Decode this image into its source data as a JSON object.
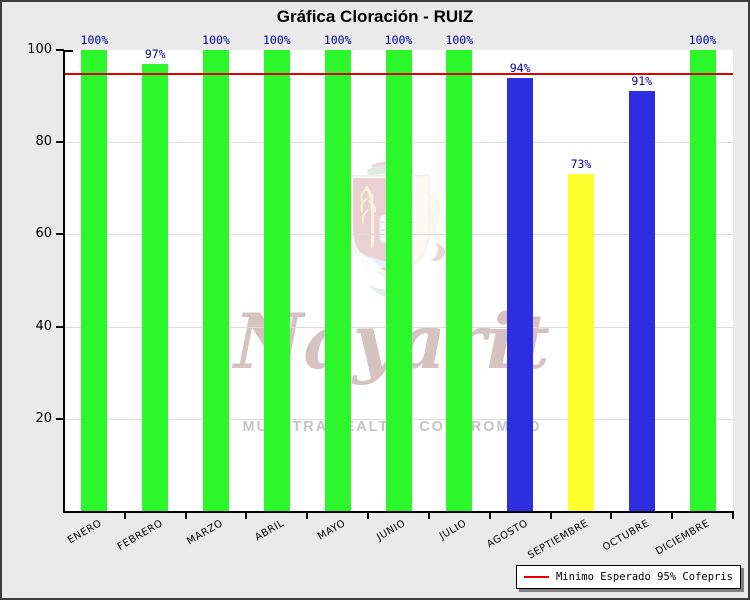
{
  "title": "Gráfica Cloración - RUIZ",
  "chart_data": {
    "type": "bar",
    "title": "Gráfica Cloración - RUIZ",
    "categories": [
      "ENERO",
      "FEBRERO",
      "MARZO",
      "ABRIL",
      "MAYO",
      "JUNIO",
      "JULIO",
      "AGOSTO",
      "SEPTIEMBRE",
      "OCTUBRE",
      "DICIEMBRE"
    ],
    "values": [
      100,
      97,
      100,
      100,
      100,
      100,
      100,
      94,
      73,
      91,
      100
    ],
    "value_labels": [
      "100%",
      "97%",
      "100%",
      "100%",
      "100%",
      "100%",
      "100%",
      "94%",
      "73%",
      "91%",
      "100%"
    ],
    "bar_colors": [
      "#2bf72b",
      "#2bf72b",
      "#2bf72b",
      "#2bf72b",
      "#2bf72b",
      "#2bf72b",
      "#2bf72b",
      "#2d2de1",
      "#ffff2d",
      "#2d2de1",
      "#2bf72b"
    ],
    "xlabel": "",
    "ylabel": "",
    "ylim": [
      0,
      100
    ],
    "yticks": [
      20,
      40,
      60,
      80,
      100
    ],
    "grid": true,
    "threshold_line": {
      "value": 95,
      "color": "#e00000"
    },
    "legend": {
      "position": "bottom-right",
      "entries": [
        {
          "label": "Minimo Esperado 95% Cofepris",
          "swatch_color": "#e00000",
          "type": "line"
        }
      ]
    }
  },
  "watermark": {
    "script_text": "Nayarit",
    "slogan": "MUESTRA LEALTAD COMPROMISO"
  },
  "colors": {
    "bar_green": "#2bf72b",
    "bar_blue": "#2d2de1",
    "bar_yellow": "#ffff2d",
    "threshold_red": "#e00000",
    "value_label": "#000099",
    "background": "#eaeaea",
    "plot_background": "#ffffff"
  }
}
